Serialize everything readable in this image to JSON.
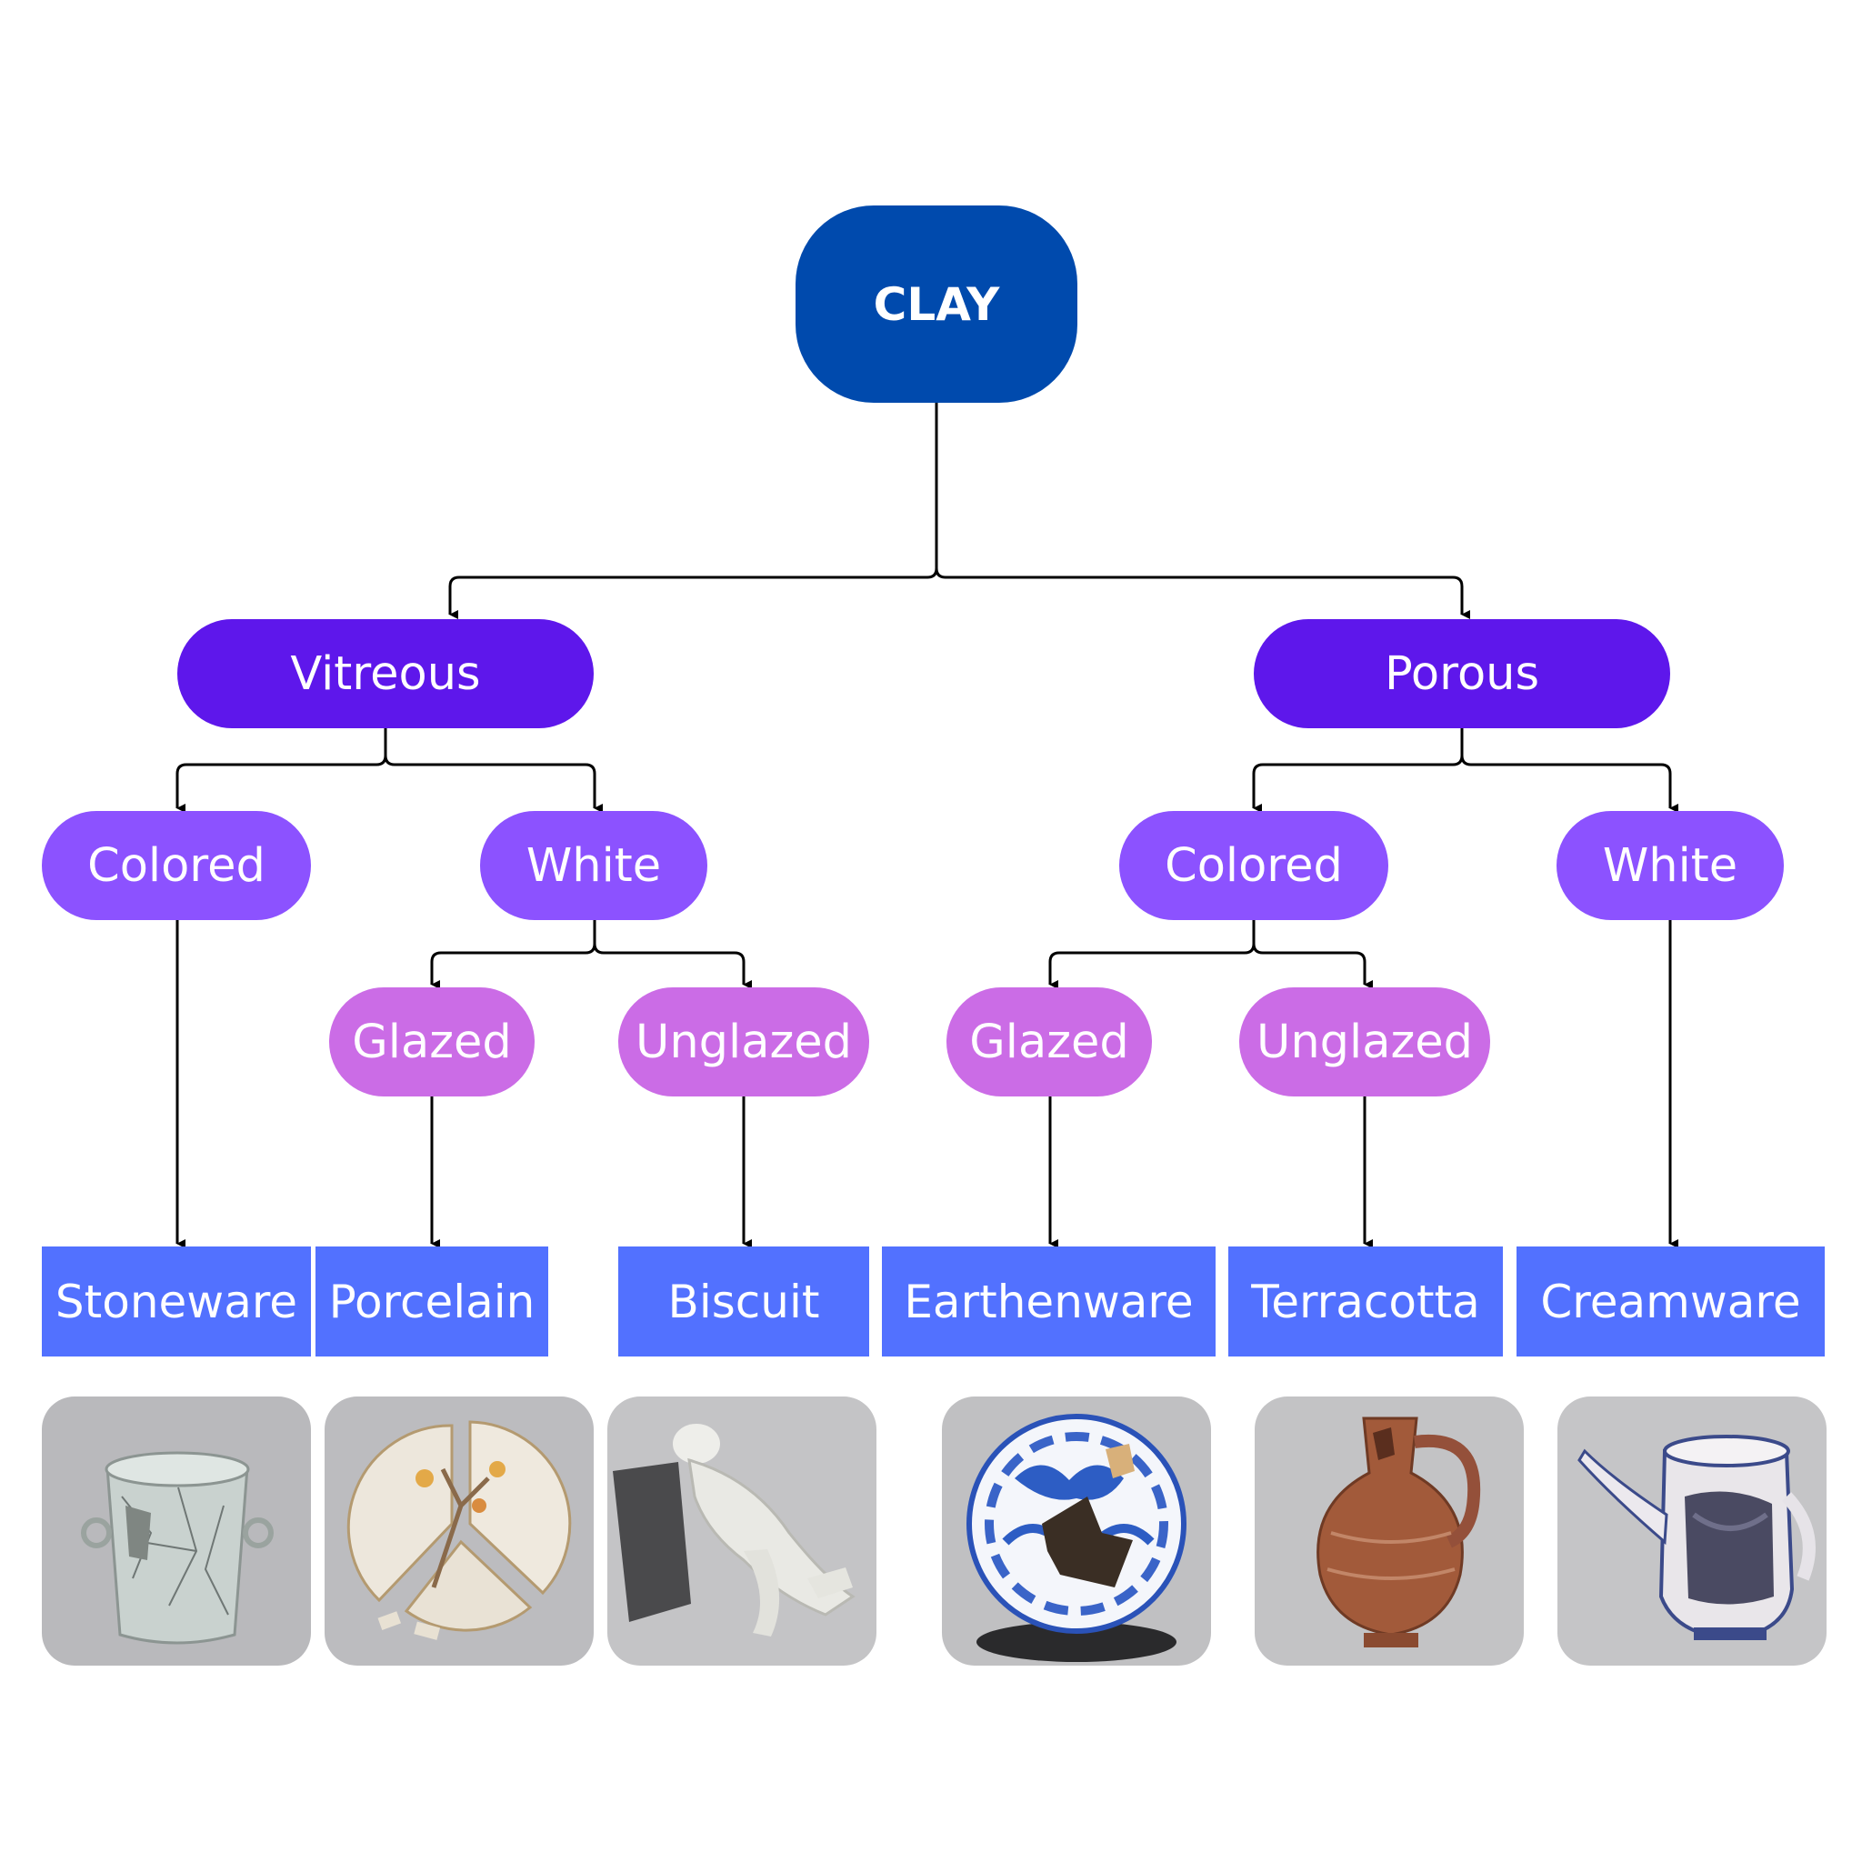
{
  "colors": {
    "root": "#004aad",
    "level1": "#5e17eb",
    "level2": "#8c52ff",
    "level3": "#cb6ce6",
    "leaf": "#5271ff",
    "connector": "#000000",
    "photo_background": "#bfbfc2"
  },
  "tree": {
    "root": "CLAY",
    "vitreous": {
      "label": "Vitreous",
      "colored": "Colored",
      "white": "White",
      "white_glazed": "Glazed",
      "white_unglazed": "Unglazed"
    },
    "porous": {
      "label": "Porous",
      "colored": "Colored",
      "white": "White",
      "colored_glazed": "Glazed",
      "colored_unglazed": "Unglazed"
    }
  },
  "leaves": [
    "Stoneware",
    "Porcelain",
    "Biscuit",
    "Earthenware",
    "Terracotta",
    "Creamware"
  ],
  "photos": [
    {
      "subject": "crackled celadon stoneware cup",
      "icon": "cup-photo"
    },
    {
      "subject": "broken painted porcelain plate",
      "icon": "plate-photo"
    },
    {
      "subject": "broken white biscuit figurine",
      "icon": "figurine-photo"
    },
    {
      "subject": "blue and white earthenware jar with holes",
      "icon": "jar-photo"
    },
    {
      "subject": "terracotta jug",
      "icon": "jug-photo"
    },
    {
      "subject": "creamware teapot",
      "icon": "teapot-photo"
    }
  ]
}
